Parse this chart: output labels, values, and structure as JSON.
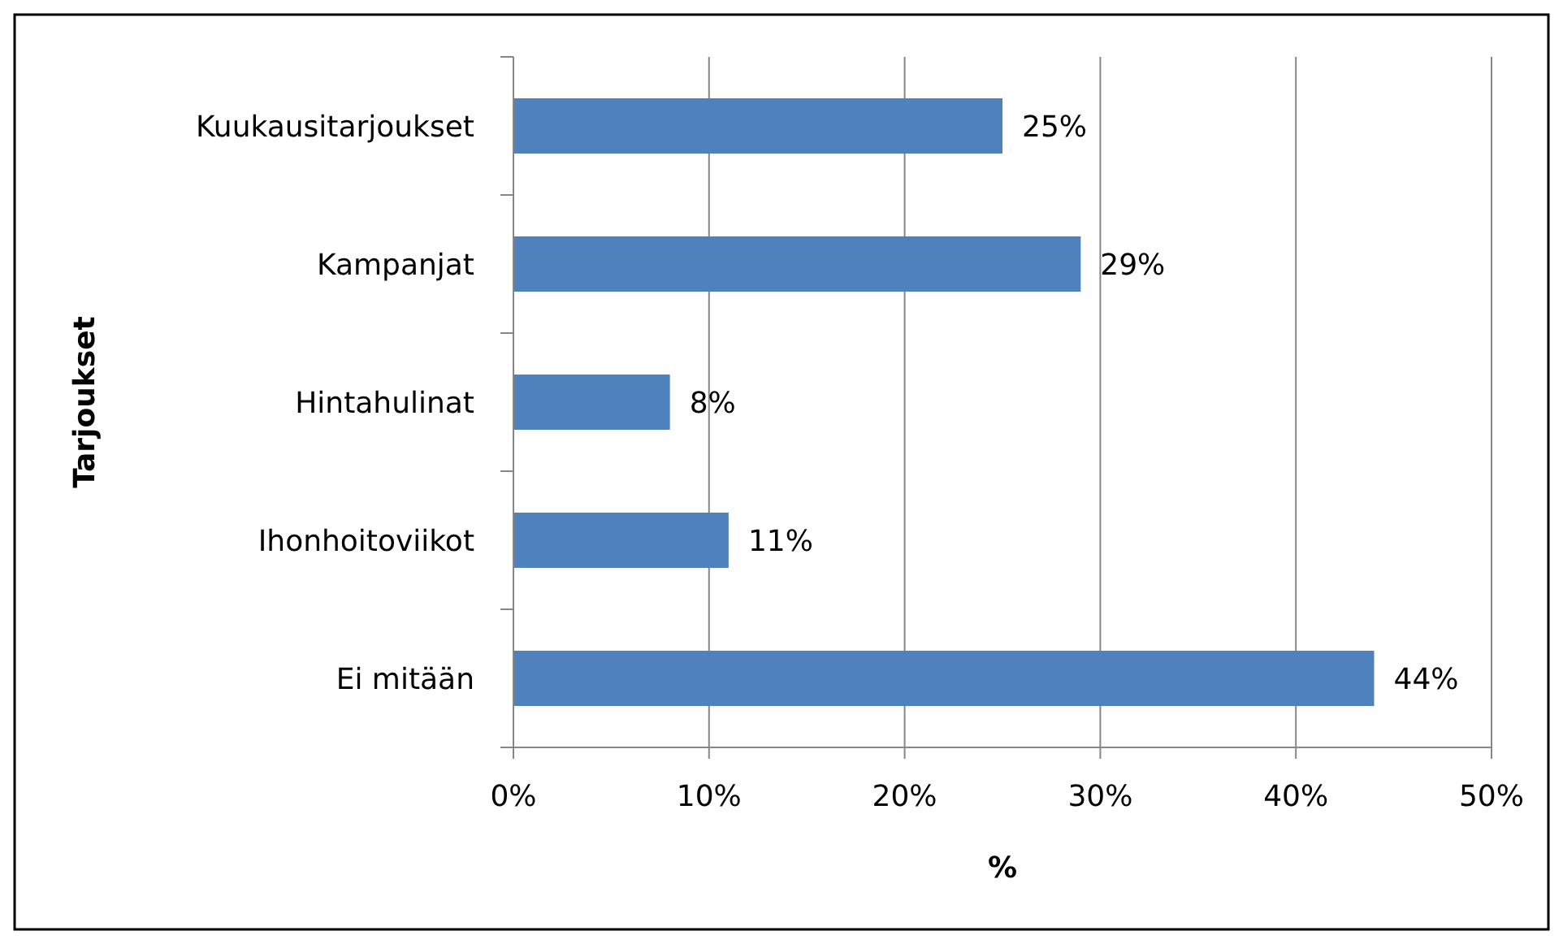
{
  "chart_data": {
    "type": "bar",
    "orientation": "horizontal",
    "xlabel": "%",
    "ylabel": "Tarjoukset",
    "categories": [
      "Kuukausitarjoukset",
      "Kampanjat",
      "Hintahulinat",
      "Ihonhoitoviikot",
      "Ei mitään"
    ],
    "values": [
      25,
      29,
      8,
      11,
      44
    ],
    "color": "#4f81bd",
    "value_labels": [
      "25%",
      "29%",
      "8%",
      "11%",
      "44%"
    ],
    "xlim": [
      0,
      50
    ],
    "xticks": [
      {
        "value": 0,
        "label": "0%"
      },
      {
        "value": 10,
        "label": "10%"
      },
      {
        "value": 20,
        "label": "20%"
      },
      {
        "value": 30,
        "label": "30%"
      },
      {
        "value": 40,
        "label": "40%"
      },
      {
        "value": 50,
        "label": "50%"
      }
    ],
    "grid": "x"
  }
}
